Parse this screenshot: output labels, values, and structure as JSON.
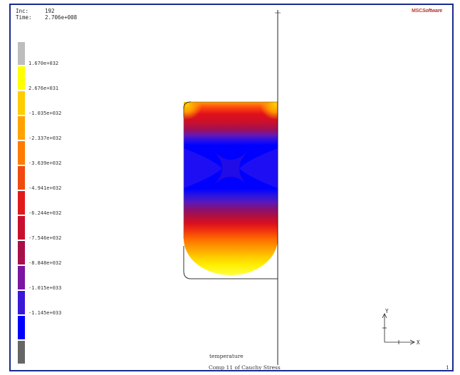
{
  "header": {
    "inc_label": "Inc:",
    "inc_value": "192",
    "time_label": "Time:",
    "time_value": "2.706e+008"
  },
  "logo": {
    "prefix": "MSC",
    "suffix": "Software"
  },
  "legend": {
    "colors": [
      "#bdbdbd",
      "#ffff00",
      "#ffcc00",
      "#ffa200",
      "#ff7a00",
      "#f04a10",
      "#e01a1a",
      "#c8102e",
      "#a8104a",
      "#7a16a0",
      "#3a18d8",
      "#0000ff",
      "#666666"
    ],
    "labels": [
      "1.670e+032",
      "2.676e+031",
      "-1.035e+032",
      "-2.337e+032",
      "-3.639e+032",
      "-4.941e+032",
      "-6.244e+032",
      "-7.546e+032",
      "-8.848e+032",
      "-1.015e+033",
      "-1.145e+033"
    ]
  },
  "plot": {
    "variable_name": "temperature",
    "caption": "Comp 11 of Cauchy Stress",
    "frame_number": "1"
  },
  "triad": {
    "y_label": "Y",
    "x_label": "X"
  }
}
